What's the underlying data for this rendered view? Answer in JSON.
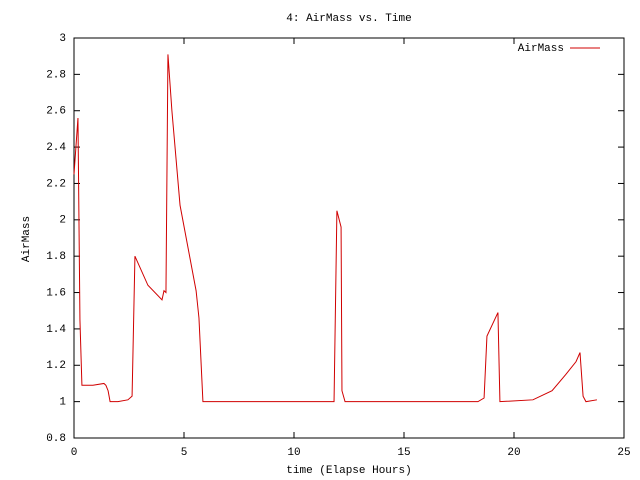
{
  "chart_data": {
    "type": "line",
    "title": "4: AirMass vs. Time",
    "xlabel": "time (Elapse Hours)",
    "ylabel": "AirMass",
    "x": [
      0,
      0.18,
      0.27,
      0.36,
      0.86,
      1.36,
      1.45,
      1.55,
      1.64,
      2.0,
      2.45,
      2.64,
      2.77,
      3.36,
      4.0,
      4.09,
      4.18,
      4.27,
      4.45,
      4.82,
      5.55,
      5.68,
      5.86,
      11.82,
      11.95,
      12.14,
      12.18,
      12.32,
      18.36,
      18.64,
      18.77,
      19.27,
      19.36,
      20.86,
      21.73,
      22.36,
      22.82,
      23.0,
      23.14,
      23.27,
      23.77
    ],
    "series": [
      {
        "name": "AirMass",
        "color": "#d00000",
        "values": [
          2.25,
          2.56,
          1.45,
          1.09,
          1.09,
          1.1,
          1.09,
          1.06,
          1.0,
          1.0,
          1.01,
          1.03,
          1.8,
          1.64,
          1.56,
          1.61,
          1.6,
          2.91,
          2.6,
          2.08,
          1.61,
          1.46,
          1.0,
          1.0,
          2.05,
          1.96,
          1.06,
          1.0,
          1.0,
          1.02,
          1.36,
          1.49,
          1.0,
          1.01,
          1.06,
          1.15,
          1.22,
          1.27,
          1.03,
          1.0,
          1.01
        ]
      }
    ],
    "xlim": [
      0,
      25
    ],
    "xticks": [
      0,
      5,
      10,
      15,
      20,
      25
    ],
    "ylim": [
      0.8,
      3
    ],
    "yticks": [
      0.8,
      1,
      1.2,
      1.4,
      1.6,
      1.8,
      2,
      2.2,
      2.4,
      2.6,
      2.8,
      3
    ],
    "legend": "upper right",
    "grid": false
  }
}
